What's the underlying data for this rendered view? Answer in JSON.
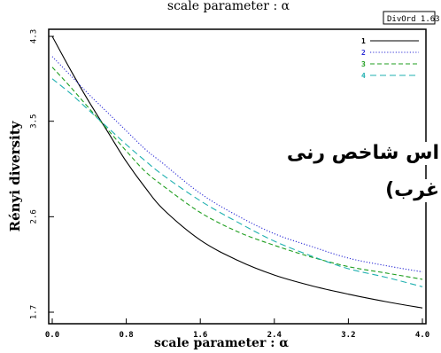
{
  "chart_data": {
    "type": "line",
    "title": "scale parameter :  α",
    "xlabel": "scale parameter :  α",
    "ylabel": "Rényi diversity",
    "xlim": [
      0.0,
      4.0
    ],
    "ylim": [
      1.7,
      4.3
    ],
    "xticks": [
      "0.0",
      "0.8",
      "1.6",
      "2.4",
      "3.2",
      "4.0"
    ],
    "yticks": [
      "1.7",
      "2.6",
      "3.5",
      "4.3"
    ],
    "legend_position": "top-right",
    "grid": false,
    "x": [
      0.0,
      0.2,
      0.4,
      0.6,
      0.8,
      1.0,
      1.2,
      1.6,
      2.0,
      2.4,
      2.8,
      3.2,
      3.6,
      4.0
    ],
    "series": [
      {
        "name": "1",
        "color": "#000000",
        "dash": "solid",
        "values": [
          4.3,
          3.98,
          3.68,
          3.4,
          3.12,
          2.88,
          2.67,
          2.38,
          2.19,
          2.05,
          1.95,
          1.87,
          1.8,
          1.74
        ]
      },
      {
        "name": "2",
        "color": "#2b2bd6",
        "dash": "dotted",
        "values": [
          4.11,
          3.93,
          3.75,
          3.58,
          3.41,
          3.24,
          3.1,
          2.82,
          2.61,
          2.44,
          2.32,
          2.21,
          2.14,
          2.08
        ]
      },
      {
        "name": "3",
        "color": "#1f9e1f",
        "dash": "dashed",
        "values": [
          4.01,
          3.82,
          3.62,
          3.42,
          3.22,
          3.03,
          2.89,
          2.64,
          2.46,
          2.33,
          2.22,
          2.13,
          2.07,
          2.01
        ]
      },
      {
        "name": "4",
        "color": "#1fb0b0",
        "dash": "longdash",
        "values": [
          3.9,
          3.76,
          3.6,
          3.44,
          3.28,
          3.13,
          2.99,
          2.75,
          2.55,
          2.37,
          2.23,
          2.11,
          2.03,
          1.94
        ]
      }
    ]
  },
  "badge": "DivOrd 1.63",
  "overlay_text": {
    "line1": "اس شاخص رنی",
    "line2": "غرب)"
  }
}
